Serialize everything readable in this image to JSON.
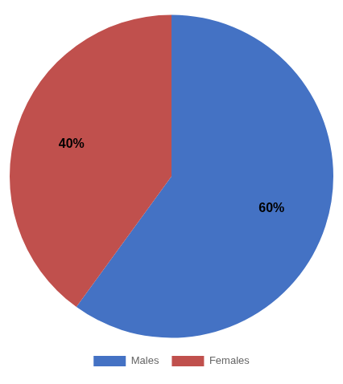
{
  "chart_data": {
    "type": "pie",
    "categories": [
      "Males",
      "Females"
    ],
    "values": [
      60,
      40
    ],
    "value_labels": [
      "60%",
      "40%"
    ],
    "colors": [
      "#4472C4",
      "#C0504D"
    ],
    "data_labels": true,
    "legend": "bottom"
  }
}
